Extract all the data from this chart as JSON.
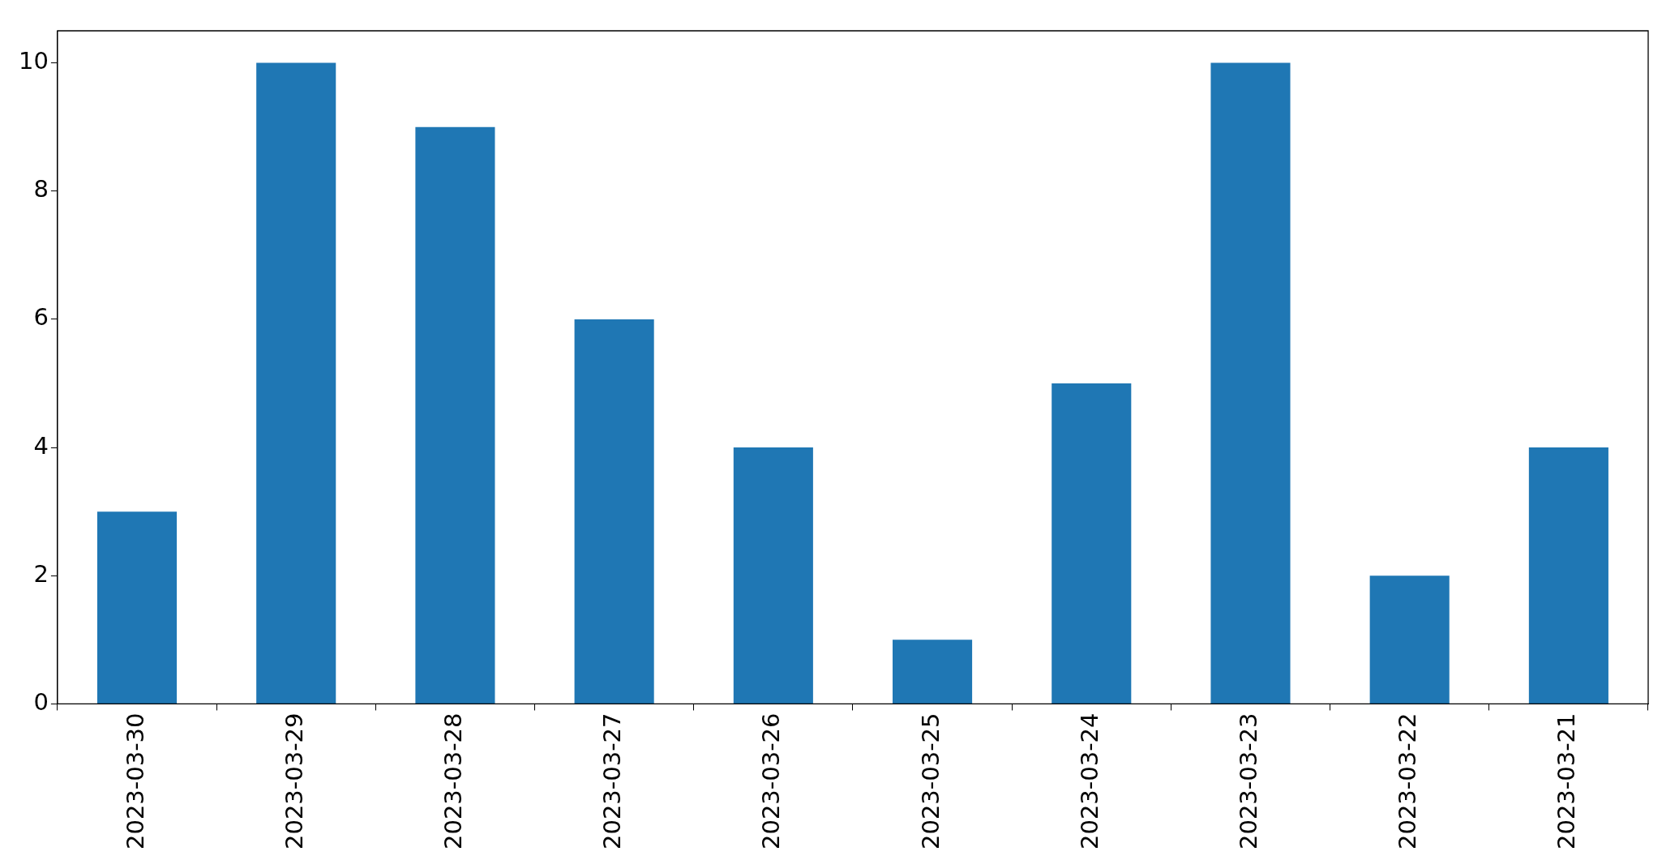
{
  "chart_data": {
    "type": "bar",
    "categories": [
      "2023-03-30",
      "2023-03-29",
      "2023-03-28",
      "2023-03-27",
      "2023-03-26",
      "2023-03-25",
      "2023-03-24",
      "2023-03-23",
      "2023-03-22",
      "2023-03-21"
    ],
    "values": [
      3,
      10,
      9,
      6,
      4,
      1,
      5,
      10,
      2,
      4
    ],
    "color": "#1f77b4",
    "ylim": [
      0,
      10.5
    ],
    "yticks": [
      0,
      2,
      4,
      6,
      8,
      10
    ],
    "grid": false
  }
}
